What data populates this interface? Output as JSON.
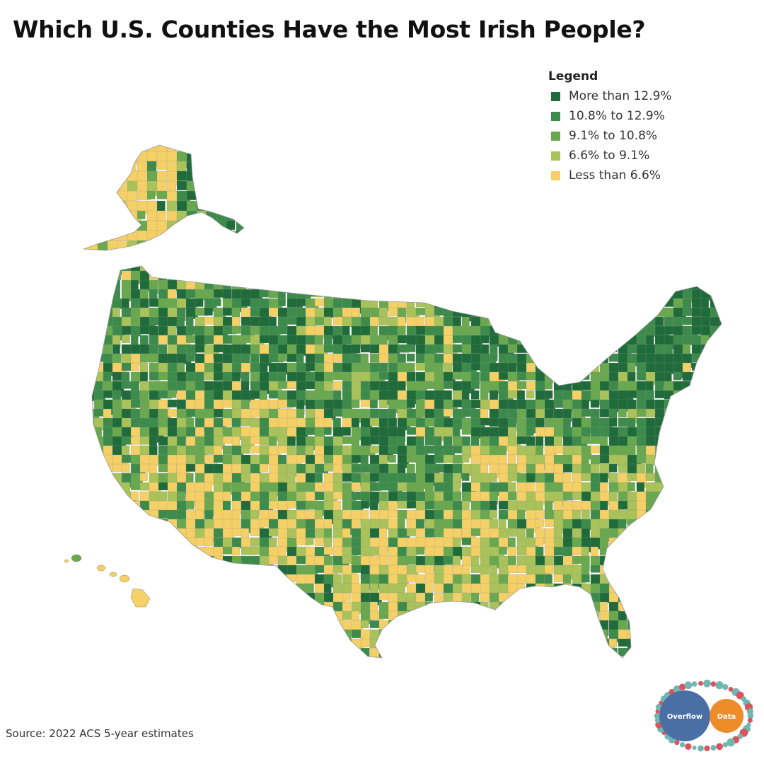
{
  "title": "Which U.S. Counties Have the Most Irish People?",
  "legend": {
    "title": "Legend",
    "items": [
      {
        "label": "More than 12.9%",
        "color": "#1f6b3a"
      },
      {
        "label": "10.8% to 12.9%",
        "color": "#3d8b4b"
      },
      {
        "label": "9.1% to 10.8%",
        "color": "#6aa84f"
      },
      {
        "label": "6.6% to 9.1%",
        "color": "#a9c25a"
      },
      {
        "label": "Less than 6.6%",
        "color": "#f4d067"
      }
    ]
  },
  "source": "Source: 2022 ACS 5-year estimates",
  "logo": {
    "left_text": "Overflow",
    "right_text": "Data",
    "left_color": "#4a6fa5",
    "right_color": "#ef8c2a"
  }
}
